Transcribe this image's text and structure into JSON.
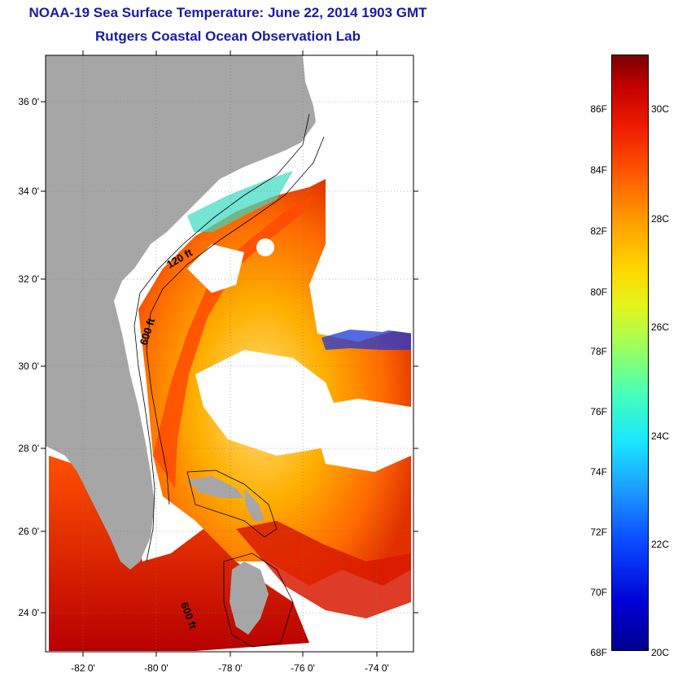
{
  "title": "NOAA-19 Sea Surface Temperature:  June 22, 2014 1903 GMT",
  "subtitle": "Rutgers Coastal Ocean Observation Lab",
  "lat_labels": [
    "36 0'",
    "34 0'",
    "32 0'",
    "30 0'",
    "28 0'",
    "26 0'",
    "24 0'"
  ],
  "lon_labels": [
    "-82 0'",
    "-80 0'",
    "-78 0'",
    "-76 0'",
    "-74 0'"
  ],
  "contour_labels": [
    "120 ft",
    "600 ft",
    "600 ft"
  ],
  "colorbar": {
    "fahrenheit_labels": [
      "86F",
      "84F",
      "82F",
      "80F",
      "78F",
      "76F",
      "74F",
      "72F",
      "70F",
      "68F"
    ],
    "celsius_labels": [
      "30C",
      "28C",
      "26C",
      "24C",
      "22C",
      "20C"
    ]
  },
  "colors": {
    "title": "#1a1aa6",
    "land": "#a6a6a6",
    "cloud_or_nodata": "#ffffff"
  }
}
